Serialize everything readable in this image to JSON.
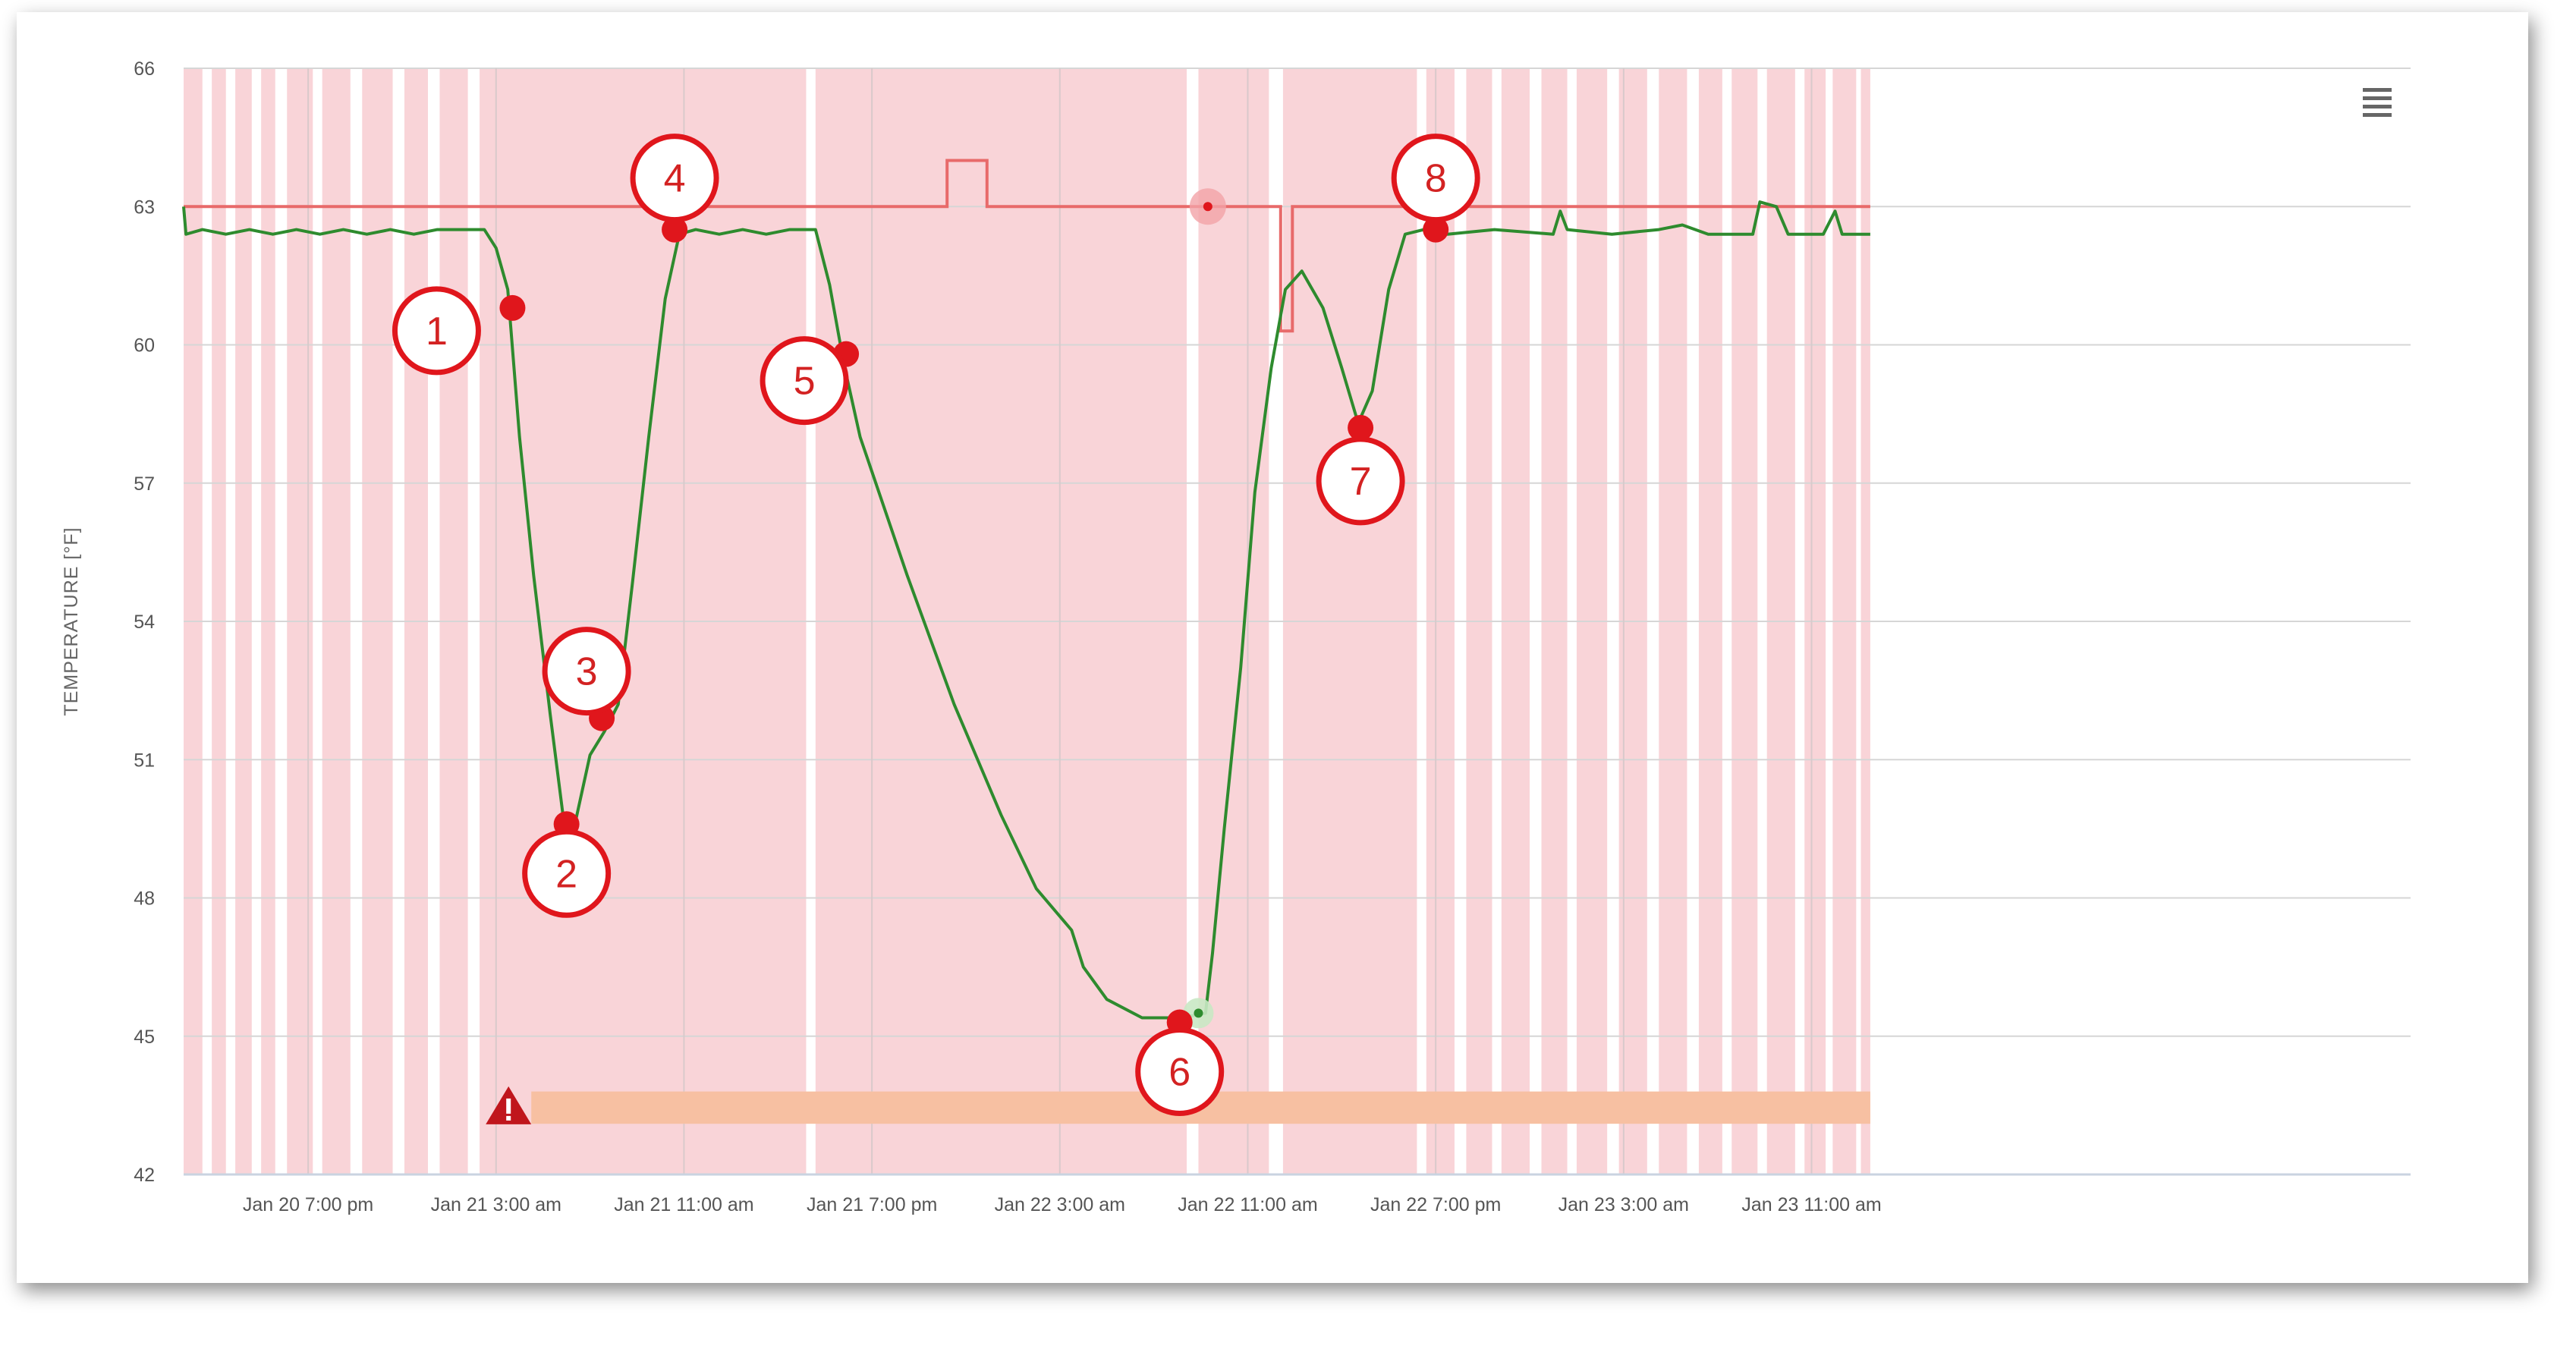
{
  "chart_data": {
    "type": "line",
    "title": "",
    "ylabel": "TEMPERATURE [°F]",
    "xlabel": "",
    "ylim": [
      42,
      66
    ],
    "y_ticks": [
      "42",
      "45",
      "48",
      "51",
      "54",
      "57",
      "60",
      "63",
      "66"
    ],
    "x_range_hours": [
      -5.3,
      89.5
    ],
    "x_ticks": [
      {
        "hour": 0,
        "label": "Jan 20 7:00 pm"
      },
      {
        "hour": 8,
        "label": "Jan 21 3:00 am"
      },
      {
        "hour": 16,
        "label": "Jan 21 11:00 am"
      },
      {
        "hour": 24,
        "label": "Jan 21 7:00 pm"
      },
      {
        "hour": 32,
        "label": "Jan 22 3:00 am"
      },
      {
        "hour": 40,
        "label": "Jan 22 11:00 am"
      },
      {
        "hour": 48,
        "label": "Jan 22 7:00 pm"
      },
      {
        "hour": 56,
        "label": "Jan 23 3:00 am"
      },
      {
        "hour": 64,
        "label": "Jan 23 11:00 am"
      }
    ],
    "grid": true,
    "colors": {
      "temperature_line": "#2e8b2e",
      "setpoint_line": "#e86a6a",
      "heating_band": "#f9d4d8",
      "alert_bar": "#f7c0a2",
      "alert_icon": "#c0161c",
      "marker": "#e0161c"
    },
    "series": [
      {
        "name": "temperature",
        "points": [
          [
            -5.3,
            63.0
          ],
          [
            -5.2,
            62.4
          ],
          [
            -4.5,
            62.5
          ],
          [
            -3.5,
            62.4
          ],
          [
            -2.5,
            62.5
          ],
          [
            -1.5,
            62.4
          ],
          [
            -0.5,
            62.5
          ],
          [
            0.5,
            62.4
          ],
          [
            1.5,
            62.5
          ],
          [
            2.5,
            62.4
          ],
          [
            3.5,
            62.5
          ],
          [
            4.5,
            62.4
          ],
          [
            5.5,
            62.5
          ],
          [
            7.5,
            62.5
          ],
          [
            8.0,
            62.1
          ],
          [
            8.5,
            61.2
          ],
          [
            9.0,
            58.0
          ],
          [
            9.6,
            55.0
          ],
          [
            10.3,
            52.0
          ],
          [
            11.0,
            49.2
          ],
          [
            11.4,
            49.7
          ],
          [
            12.0,
            51.1
          ],
          [
            12.6,
            51.6
          ],
          [
            13.2,
            52.2
          ],
          [
            13.8,
            54.8
          ],
          [
            14.5,
            58.0
          ],
          [
            15.2,
            61.0
          ],
          [
            15.8,
            62.4
          ],
          [
            16.5,
            62.5
          ],
          [
            17.5,
            62.4
          ],
          [
            18.5,
            62.5
          ],
          [
            19.5,
            62.4
          ],
          [
            20.5,
            62.5
          ],
          [
            21.6,
            62.5
          ],
          [
            22.2,
            61.3
          ],
          [
            22.8,
            59.6
          ],
          [
            23.5,
            58.0
          ],
          [
            25.5,
            55.0
          ],
          [
            27.5,
            52.2
          ],
          [
            29.5,
            49.8
          ],
          [
            31.0,
            48.2
          ],
          [
            32.5,
            47.3
          ],
          [
            33.0,
            46.5
          ],
          [
            34.0,
            45.8
          ],
          [
            35.5,
            45.4
          ],
          [
            37.2,
            45.4
          ],
          [
            38.2,
            45.5
          ],
          [
            38.5,
            46.8
          ],
          [
            39.0,
            49.5
          ],
          [
            39.7,
            53.0
          ],
          [
            40.3,
            56.8
          ],
          [
            41.0,
            59.5
          ],
          [
            41.6,
            61.2
          ],
          [
            42.3,
            61.6
          ],
          [
            43.2,
            60.8
          ],
          [
            44.0,
            59.5
          ],
          [
            44.7,
            58.3
          ],
          [
            45.3,
            59.0
          ],
          [
            46.0,
            61.2
          ],
          [
            46.7,
            62.4
          ],
          [
            47.5,
            62.5
          ],
          [
            48.5,
            62.4
          ],
          [
            50.5,
            62.5
          ],
          [
            53.0,
            62.4
          ],
          [
            53.3,
            62.9
          ],
          [
            53.6,
            62.5
          ],
          [
            55.5,
            62.4
          ],
          [
            57.5,
            62.5
          ],
          [
            58.5,
            62.6
          ],
          [
            59.6,
            62.4
          ],
          [
            61.5,
            62.4
          ],
          [
            61.8,
            63.1
          ],
          [
            62.5,
            63.0
          ],
          [
            63.0,
            62.4
          ],
          [
            64.5,
            62.4
          ],
          [
            65.0,
            62.9
          ],
          [
            65.3,
            62.4
          ],
          [
            66.5,
            62.4
          ]
        ]
      },
      {
        "name": "setpoint",
        "points": [
          [
            -5.3,
            63.0
          ],
          [
            27.2,
            63.0
          ],
          [
            27.2,
            64.0
          ],
          [
            28.9,
            64.0
          ],
          [
            28.9,
            63.0
          ],
          [
            41.4,
            63.0
          ],
          [
            41.4,
            60.3
          ],
          [
            41.9,
            60.3
          ],
          [
            41.9,
            63.0
          ],
          [
            66.5,
            63.0
          ]
        ]
      }
    ],
    "heating_periods": [
      [
        -5.3,
        -4.5
      ],
      [
        -4.1,
        -3.5
      ],
      [
        -3.1,
        -2.4
      ],
      [
        -2.0,
        -1.4
      ],
      [
        -0.9,
        0.2
      ],
      [
        0.6,
        1.8
      ],
      [
        2.3,
        3.6
      ],
      [
        4.1,
        5.1
      ],
      [
        5.6,
        6.8
      ],
      [
        7.3,
        21.2
      ],
      [
        21.6,
        37.4
      ],
      [
        37.9,
        40.9
      ],
      [
        41.5,
        47.2
      ],
      [
        47.6,
        48.8
      ],
      [
        49.3,
        50.4
      ],
      [
        50.8,
        52.0
      ],
      [
        52.5,
        53.6
      ],
      [
        54.0,
        55.3
      ],
      [
        55.8,
        57.0
      ],
      [
        57.5,
        58.7
      ],
      [
        59.2,
        60.2
      ],
      [
        60.6,
        61.7
      ],
      [
        62.1,
        63.3
      ],
      [
        63.7,
        64.6
      ],
      [
        64.9,
        65.9
      ],
      [
        66.1,
        66.5
      ]
    ],
    "alert_period": {
      "start": 9.5,
      "end": 66.5
    },
    "markers": [
      {
        "label": "1",
        "x": 8.7,
        "y": 60.8
      },
      {
        "label": "2",
        "x": 11.0,
        "y": 49.6
      },
      {
        "label": "3",
        "x": 12.5,
        "y": 51.9
      },
      {
        "label": "4",
        "x": 15.6,
        "y": 62.5
      },
      {
        "label": "5",
        "x": 22.9,
        "y": 59.8
      },
      {
        "label": "6",
        "x": 37.1,
        "y": 45.3
      },
      {
        "label": "7",
        "x": 44.8,
        "y": 58.2
      },
      {
        "label": "8",
        "x": 48.0,
        "y": 62.5
      }
    ]
  },
  "menu": {
    "icon": "hamburger-menu-icon"
  }
}
